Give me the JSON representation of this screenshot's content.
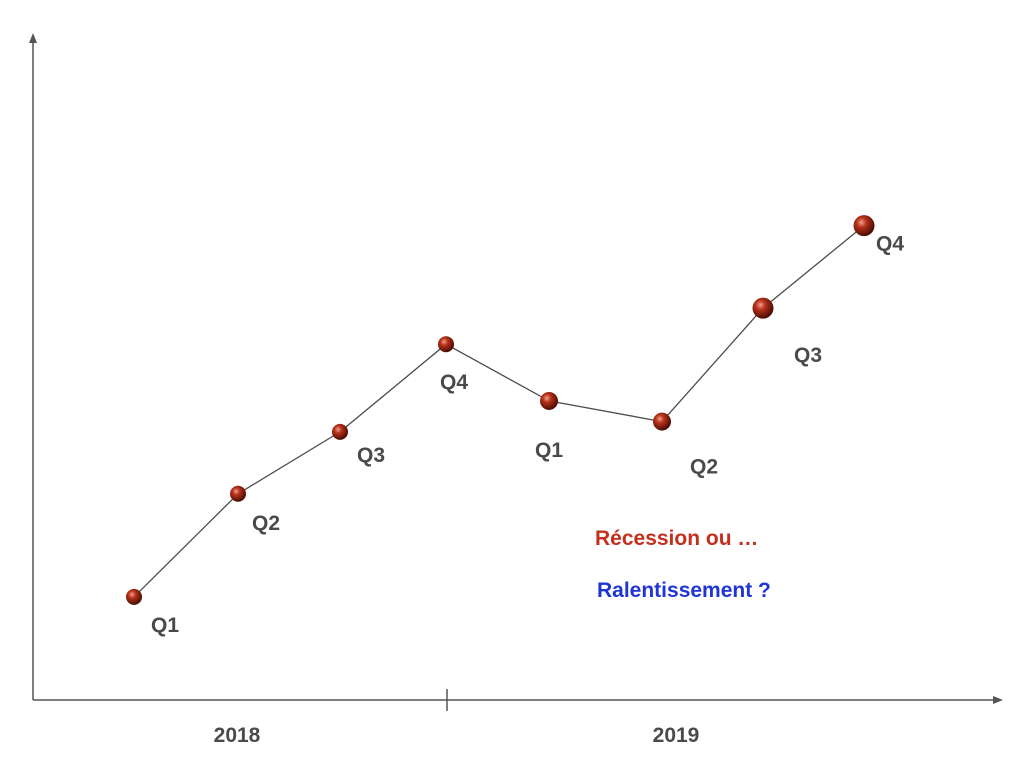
{
  "chart_data": {
    "type": "line",
    "title": "",
    "xlabel": "",
    "ylabel": "",
    "grid": false,
    "legend": "none",
    "year_labels": [
      "2018",
      "2019"
    ],
    "points": [
      {
        "label": "Q1",
        "year": "2018",
        "value": 10
      },
      {
        "label": "Q2",
        "year": "2018",
        "value": 20
      },
      {
        "label": "Q3",
        "year": "2018",
        "value": 26
      },
      {
        "label": "Q4",
        "year": "2018",
        "value": 34.5
      },
      {
        "label": "Q1",
        "year": "2019",
        "value": 29
      },
      {
        "label": "Q2",
        "year": "2019",
        "value": 27
      },
      {
        "label": "Q3",
        "year": "2019",
        "value": 38
      },
      {
        "label": "Q4",
        "year": "2019",
        "value": 46
      }
    ],
    "ylim": [
      0,
      64
    ],
    "annotations": [
      {
        "text": "Récession ou …",
        "color": "#c4301c"
      },
      {
        "text": "Ralentissement ?",
        "color": "#1f35d6"
      }
    ],
    "colors": {
      "marker": "#a3260f",
      "line": "#4d4d4d",
      "axis": "#555555"
    }
  }
}
